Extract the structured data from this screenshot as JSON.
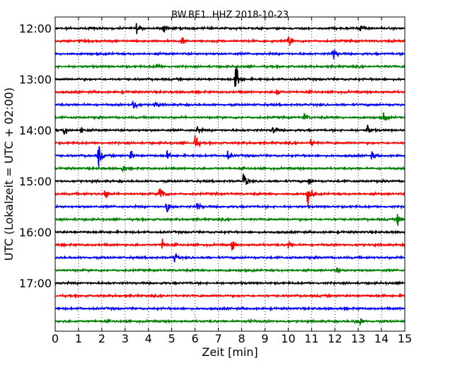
{
  "chart_data": {
    "type": "line",
    "title": "BW.BE1..HHZ 2018-10-23",
    "xlabel": "Zeit  [min]",
    "ylabel": "UTC (Lokalzeit = UTC + 02:00)",
    "xlim": [
      0,
      15
    ],
    "x_ticks": [
      "0",
      "1",
      "2",
      "3",
      "4",
      "5",
      "6",
      "7",
      "8",
      "9",
      "10",
      "11",
      "12",
      "13",
      "14",
      "15"
    ],
    "hour_labels": [
      {
        "label": "12:00",
        "row": 0
      },
      {
        "label": "13:00",
        "row": 4
      },
      {
        "label": "14:00",
        "row": 8
      },
      {
        "label": "15:00",
        "row": 12
      },
      {
        "label": "16:00",
        "row": 16
      },
      {
        "label": "17:00",
        "row": 20
      }
    ],
    "grid": {
      "x": true,
      "y": false,
      "style": "dotted"
    },
    "trace_colors": [
      "#000000",
      "#ff0000",
      "#0000ff",
      "#008000"
    ],
    "series": [
      {
        "start": "12:00",
        "events": [
          {
            "t": 3.5,
            "a": 0.45
          },
          {
            "t": 4.65,
            "a": 0.45
          },
          {
            "t": 13.1,
            "a": 0.45
          }
        ]
      },
      {
        "start": "12:15",
        "events": [
          {
            "t": 5.45,
            "a": 0.35
          },
          {
            "t": 10.0,
            "a": 0.45
          }
        ]
      },
      {
        "start": "12:30",
        "events": [
          {
            "t": 11.95,
            "a": 0.3
          },
          {
            "t": 11.9,
            "a": 0.3
          }
        ]
      },
      {
        "start": "12:45",
        "events": [
          {
            "t": 4.35,
            "a": 0.25
          }
        ]
      },
      {
        "start": "13:00",
        "events": [
          {
            "t": 7.75,
            "a": 1.4
          }
        ]
      },
      {
        "start": "13:15",
        "events": [
          {
            "t": 9.5,
            "a": 0.35
          }
        ]
      },
      {
        "start": "13:30",
        "events": [
          {
            "t": 3.35,
            "a": 0.7
          },
          {
            "t": 4.3,
            "a": 0.3
          }
        ]
      },
      {
        "start": "13:45",
        "events": [
          {
            "t": 10.7,
            "a": 0.35
          },
          {
            "t": 14.1,
            "a": 0.45
          }
        ]
      },
      {
        "start": "14:00",
        "events": [
          {
            "t": 0.4,
            "a": 0.45
          },
          {
            "t": 1.1,
            "a": 0.35
          },
          {
            "t": 6.1,
            "a": 0.3
          },
          {
            "t": 9.35,
            "a": 0.35
          },
          {
            "t": 13.4,
            "a": 0.45
          }
        ]
      },
      {
        "start": "14:15",
        "events": [
          {
            "t": 6.0,
            "a": 0.7
          },
          {
            "t": 11.0,
            "a": 0.3
          }
        ]
      },
      {
        "start": "14:30",
        "events": [
          {
            "t": 1.85,
            "a": 1.1
          },
          {
            "t": 3.25,
            "a": 0.45
          },
          {
            "t": 4.8,
            "a": 0.3
          },
          {
            "t": 7.4,
            "a": 0.35
          },
          {
            "t": 13.6,
            "a": 0.3
          }
        ]
      },
      {
        "start": "14:45",
        "events": [
          {
            "t": 2.9,
            "a": 0.35
          }
        ]
      },
      {
        "start": "15:00",
        "events": [
          {
            "t": 8.1,
            "a": 0.8
          },
          {
            "t": 10.9,
            "a": 0.3
          }
        ]
      },
      {
        "start": "15:15",
        "events": [
          {
            "t": 2.15,
            "a": 0.45
          },
          {
            "t": 4.5,
            "a": 1.1
          },
          {
            "t": 10.85,
            "a": 1.1
          }
        ]
      },
      {
        "start": "15:30",
        "events": [
          {
            "t": 4.8,
            "a": 0.7
          },
          {
            "t": 6.1,
            "a": 0.45
          }
        ]
      },
      {
        "start": "15:45",
        "events": [
          {
            "t": 14.7,
            "a": 0.45
          }
        ]
      },
      {
        "start": "16:00",
        "events": []
      },
      {
        "start": "16:15",
        "events": [
          {
            "t": 4.6,
            "a": 0.4
          },
          {
            "t": 7.6,
            "a": 0.4
          },
          {
            "t": 10.0,
            "a": 0.3
          }
        ]
      },
      {
        "start": "16:30",
        "events": [
          {
            "t": 5.1,
            "a": 0.5
          }
        ]
      },
      {
        "start": "16:45",
        "events": [
          {
            "t": 12.1,
            "a": 0.25
          }
        ]
      },
      {
        "start": "17:00",
        "events": []
      },
      {
        "start": "17:15",
        "events": []
      },
      {
        "start": "17:30",
        "events": []
      },
      {
        "start": "17:45",
        "events": [
          {
            "t": 8.3,
            "a": 0.3
          },
          {
            "t": 12.9,
            "a": 0.3
          },
          {
            "t": 13.1,
            "a": 0.3
          }
        ]
      }
    ]
  }
}
